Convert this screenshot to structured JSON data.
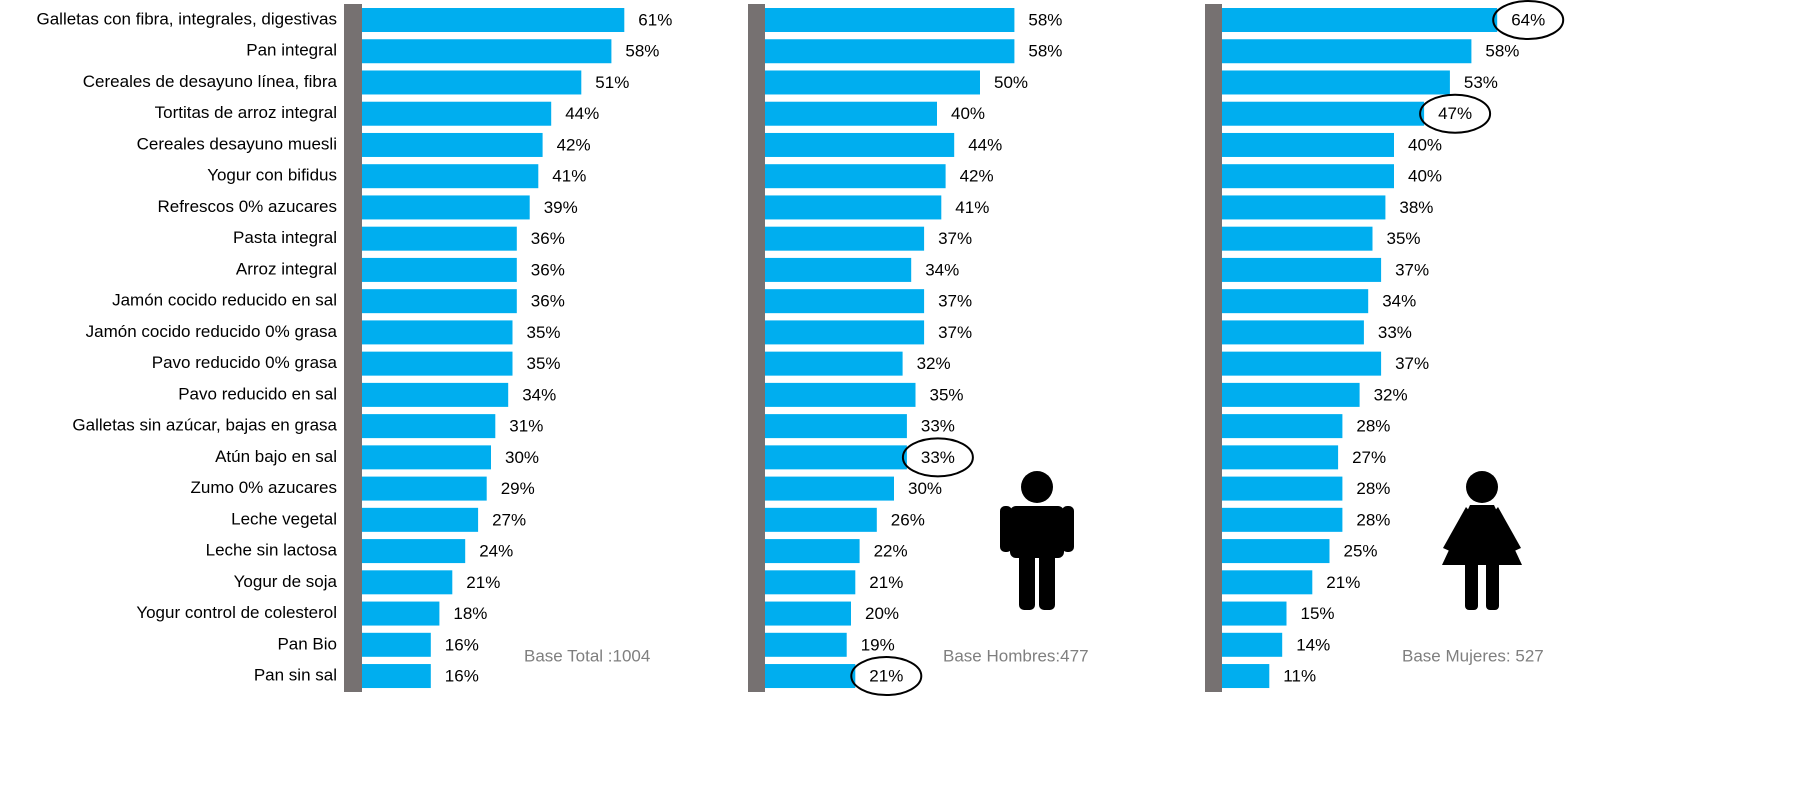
{
  "chart_data": {
    "type": "bar",
    "orientation": "horizontal",
    "categories": [
      "Galletas con fibra, integrales, digestivas",
      "Pan integral",
      "Cereales de desayuno línea, fibra",
      "Tortitas de arroz integral",
      "Cereales desayuno muesli",
      "Yogur con bifidus",
      "Refrescos 0% azucares",
      "Pasta integral",
      "Arroz integral",
      "Jamón cocido reducido en sal",
      "Jamón cocido reducido 0% grasa",
      "Pavo reducido 0% grasa",
      "Pavo reducido en sal",
      "Galletas sin azúcar, bajas en grasa",
      "Atún bajo en sal",
      "Zumo 0% azucares",
      "Leche vegetal",
      "Leche sin lactosa",
      "Yogur de soja",
      "Yogur control de colesterol",
      "Pan Bio",
      "Pan sin sal"
    ],
    "series": [
      {
        "name": "Base Total :1004",
        "color": "#00aeef",
        "values": [
          61,
          58,
          51,
          44,
          42,
          41,
          39,
          36,
          36,
          36,
          35,
          35,
          34,
          31,
          30,
          29,
          27,
          24,
          21,
          18,
          16,
          16
        ],
        "value_labels": [
          "61%",
          "58%",
          "51%",
          "44%",
          "42%",
          "41%",
          "39%",
          "36%",
          "36%",
          "36%",
          "35%",
          "35%",
          "34%",
          "31%",
          "30%",
          "29%",
          "27%",
          "24%",
          "21%",
          "18%",
          "16%",
          "16%"
        ],
        "circled": []
      },
      {
        "name": "Base Hombres:477",
        "color": "#00aeef",
        "values": [
          58,
          58,
          50,
          40,
          44,
          42,
          41,
          37,
          34,
          37,
          37,
          32,
          35,
          33,
          33,
          30,
          26,
          22,
          21,
          20,
          19,
          21
        ],
        "value_labels": [
          "58%",
          "58%",
          "50%",
          "40%",
          "44%",
          "42%",
          "41%",
          "37%",
          "34%",
          "37%",
          "37%",
          "32%",
          "35%",
          "33%",
          "33%",
          "30%",
          "26%",
          "22%",
          "21%",
          "20%",
          "19%",
          "21%"
        ],
        "circled": [
          14,
          21
        ]
      },
      {
        "name": "Base Mujeres: 527",
        "color": "#00aeef",
        "values": [
          64,
          58,
          53,
          47,
          40,
          40,
          38,
          35,
          37,
          34,
          33,
          37,
          32,
          28,
          27,
          28,
          28,
          25,
          21,
          15,
          14,
          11
        ],
        "value_labels": [
          "64%",
          "58%",
          "53%",
          "47%",
          "40%",
          "40%",
          "38%",
          "35%",
          "37%",
          "34%",
          "33%",
          "37%",
          "32%",
          "28%",
          "27%",
          "28%",
          "28%",
          "25%",
          "21%",
          "15%",
          "14%",
          "11%"
        ],
        "circled": [
          0,
          3
        ]
      }
    ]
  }
}
